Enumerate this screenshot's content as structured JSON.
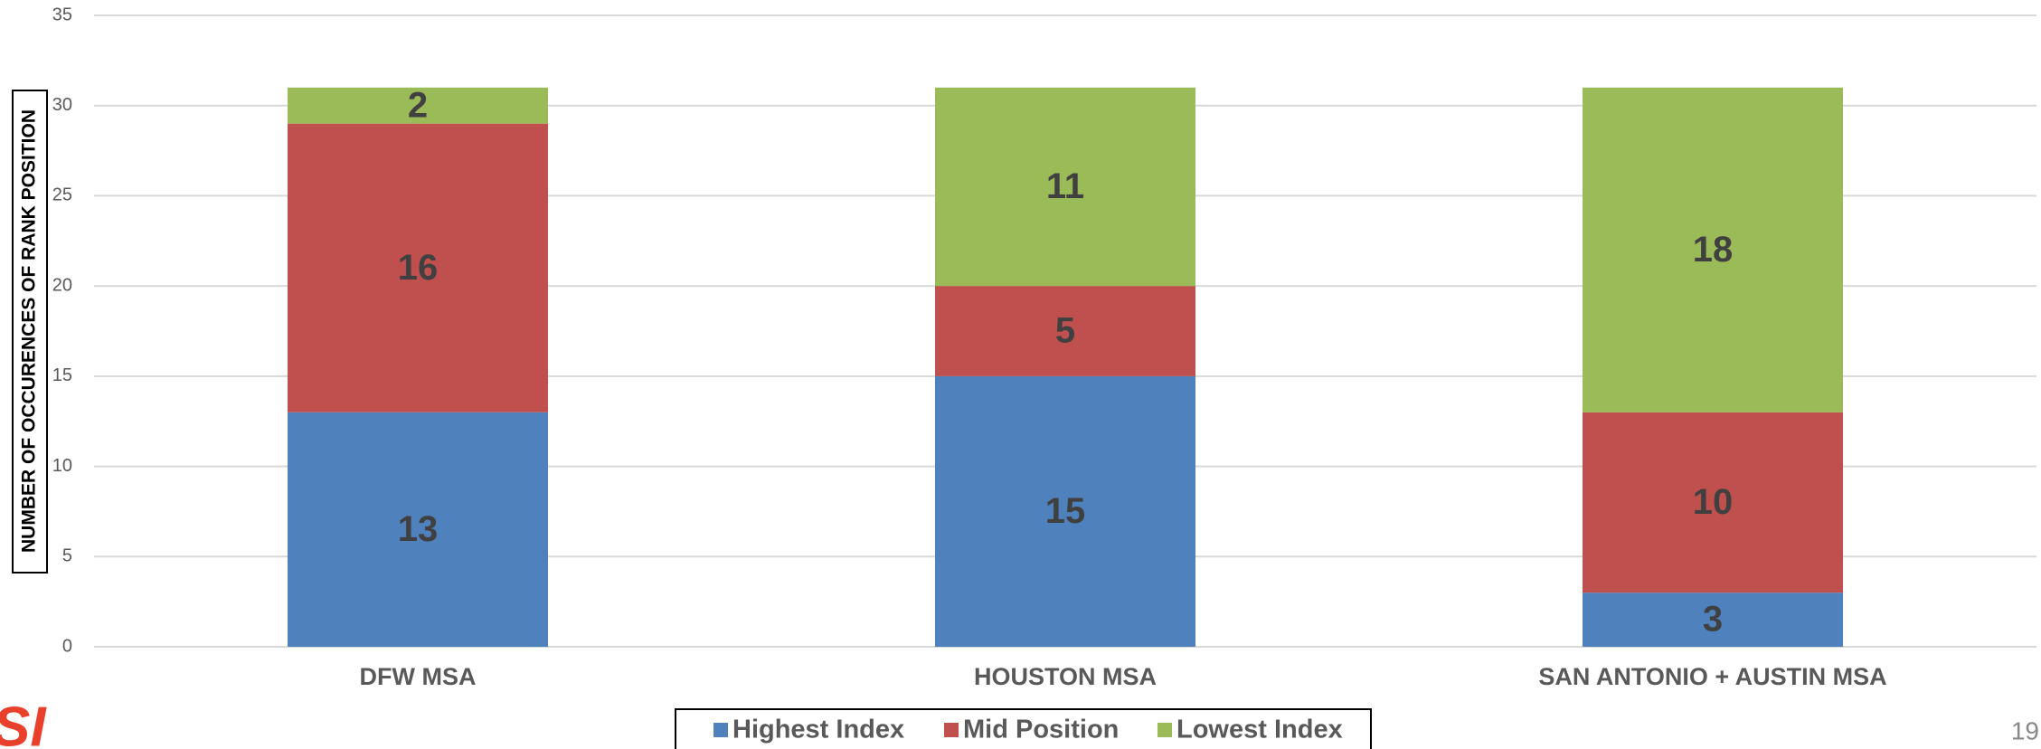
{
  "chart_data": {
    "type": "stacked_bar",
    "y_label": "NUMBER OF OCCURENCES OF  RANK POSITION",
    "categories": [
      "DFW MSA",
      "HOUSTON MSA",
      "SAN ANTONIO +  AUSTIN MSA"
    ],
    "series": [
      {
        "name": "Highest Index",
        "color": "#4f81bd",
        "values": [
          13,
          15,
          3
        ]
      },
      {
        "name": "Mid Position",
        "color": "#c0504d",
        "values": [
          16,
          5,
          10
        ]
      },
      {
        "name": "Lowest Index",
        "color": "#9bbb59",
        "values": [
          2,
          11,
          18
        ]
      }
    ],
    "ylim": [
      0,
      35
    ],
    "yticks": [
      0,
      5,
      10,
      15,
      20,
      25,
      30,
      35
    ],
    "grid": true,
    "legend": "bottom",
    "logo_text": "SI",
    "page_number": "19"
  }
}
